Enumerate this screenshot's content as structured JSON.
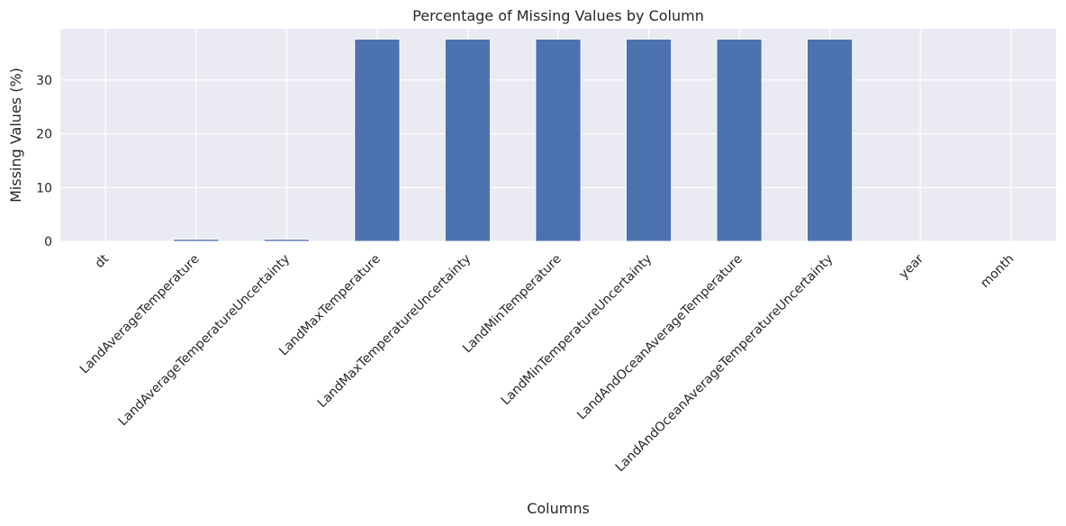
{
  "chart_data": {
    "type": "bar",
    "title": "Percentage of Missing Values by Column",
    "xlabel": "Columns",
    "ylabel": "Missing Values (%)",
    "categories": [
      "dt",
      "LandAverageTemperature",
      "LandAverageTemperatureUncertainty",
      "LandMaxTemperature",
      "LandMaxTemperatureUncertainty",
      "LandMinTemperature",
      "LandMinTemperatureUncertainty",
      "LandAndOceanAverageTemperature",
      "LandAndOceanAverageTemperatureUncertainty",
      "year",
      "month"
    ],
    "values": [
      0,
      0.4,
      0.4,
      37.6,
      37.6,
      37.6,
      37.6,
      37.6,
      37.6,
      0,
      0
    ],
    "ylim": [
      0,
      39.5
    ],
    "yticks": [
      0,
      10,
      20,
      30
    ],
    "grid": true,
    "bar_color": "#4c72b0",
    "background_color": "#eaeaf2",
    "grid_color": "#ffffff"
  }
}
